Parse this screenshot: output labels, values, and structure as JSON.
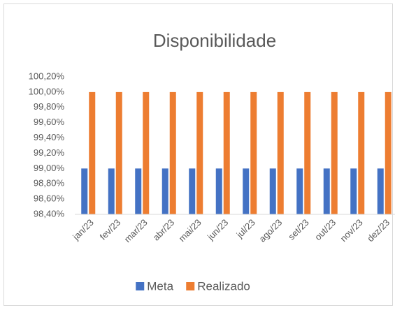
{
  "chart_data": {
    "type": "bar",
    "title": "Disponibilidade",
    "categories": [
      "jan/23",
      "fev/23",
      "mar/23",
      "abr/23",
      "mai/23",
      "jun/23",
      "jul/23",
      "ago/23",
      "set/23",
      "out/23",
      "nov/23",
      "dez/23"
    ],
    "series": [
      {
        "name": "Meta",
        "color": "#4472c4",
        "values": [
          99,
          99,
          99,
          99,
          99,
          99,
          99,
          99,
          99,
          99,
          99,
          99
        ]
      },
      {
        "name": "Realizado",
        "color": "#ed7d31",
        "values": [
          100,
          100,
          100,
          100,
          100,
          100,
          100,
          100,
          100,
          100,
          100,
          100
        ]
      }
    ],
    "ylim": [
      98.4,
      100.2
    ],
    "yticks": [
      {
        "value": 98.4,
        "label": "98,40%"
      },
      {
        "value": 98.6,
        "label": "98,60%"
      },
      {
        "value": 98.8,
        "label": "98,80%"
      },
      {
        "value": 99.0,
        "label": "99,00%"
      },
      {
        "value": 99.2,
        "label": "99,20%"
      },
      {
        "value": 99.4,
        "label": "99,40%"
      },
      {
        "value": 99.6,
        "label": "99,60%"
      },
      {
        "value": 99.8,
        "label": "99,80%"
      },
      {
        "value": 100.0,
        "label": "100,00%"
      },
      {
        "value": 100.2,
        "label": "100,20%"
      }
    ],
    "grid": false,
    "legend": "bottom"
  }
}
